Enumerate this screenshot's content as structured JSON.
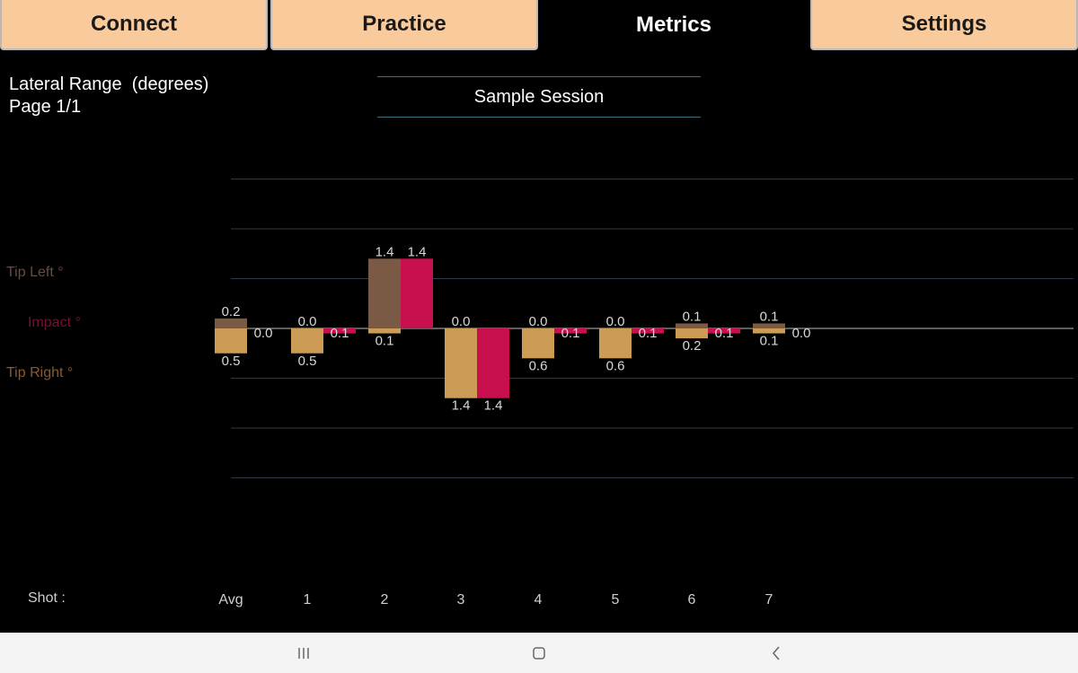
{
  "tabs": [
    {
      "label": "Connect",
      "active": false
    },
    {
      "label": "Practice",
      "active": false
    },
    {
      "label": "Metrics",
      "active": true
    },
    {
      "label": "Settings",
      "active": false
    }
  ],
  "header": {
    "title": "Lateral Range  (degrees)",
    "page": "Page 1/1",
    "session": "Sample Session"
  },
  "axis_labels": {
    "tip_left": "Tip Left °",
    "impact": "Impact °",
    "tip_right": "Tip Right °",
    "shot": "Shot :"
  },
  "colors": {
    "tip_left": "#7a5a44",
    "tip_right": "#cc9b55",
    "impact": "#c8104f",
    "gridline": "#2e3a45",
    "tab_inactive": "#f9cb9c"
  },
  "chart_data": {
    "type": "bar",
    "categories": [
      "Avg",
      "1",
      "2",
      "3",
      "4",
      "5",
      "6",
      "7"
    ],
    "series": [
      {
        "name": "Tip Left °",
        "values": [
          0.2,
          0.0,
          1.4,
          0.0,
          0.0,
          0.0,
          0.1,
          0.1
        ]
      },
      {
        "name": "Tip Right °",
        "values": [
          0.5,
          0.5,
          0.1,
          1.4,
          0.6,
          0.6,
          0.2,
          0.1
        ]
      },
      {
        "name": "Impact °",
        "values": [
          0.0,
          0.1,
          1.4,
          1.4,
          0.1,
          0.1,
          0.1,
          0.0
        ]
      }
    ],
    "impact_direction": [
      "left",
      "right",
      "left",
      "right",
      "right",
      "right",
      "right",
      "right"
    ],
    "labels": {
      "tip_left": [
        "0.2",
        "0.0",
        "1.4",
        "0.0",
        "0.0",
        "0.0",
        "0.1",
        "0.1"
      ],
      "tip_right": [
        "0.5",
        "0.5",
        "0.1",
        "1.4",
        "0.6",
        "0.6",
        "0.2",
        "0.1"
      ],
      "impact": [
        "0.0",
        "0.1",
        "1.4",
        "1.4",
        "0.1",
        "0.1",
        "0.1",
        "0.0"
      ]
    },
    "grid": true,
    "ylim": [
      -3,
      3
    ]
  }
}
